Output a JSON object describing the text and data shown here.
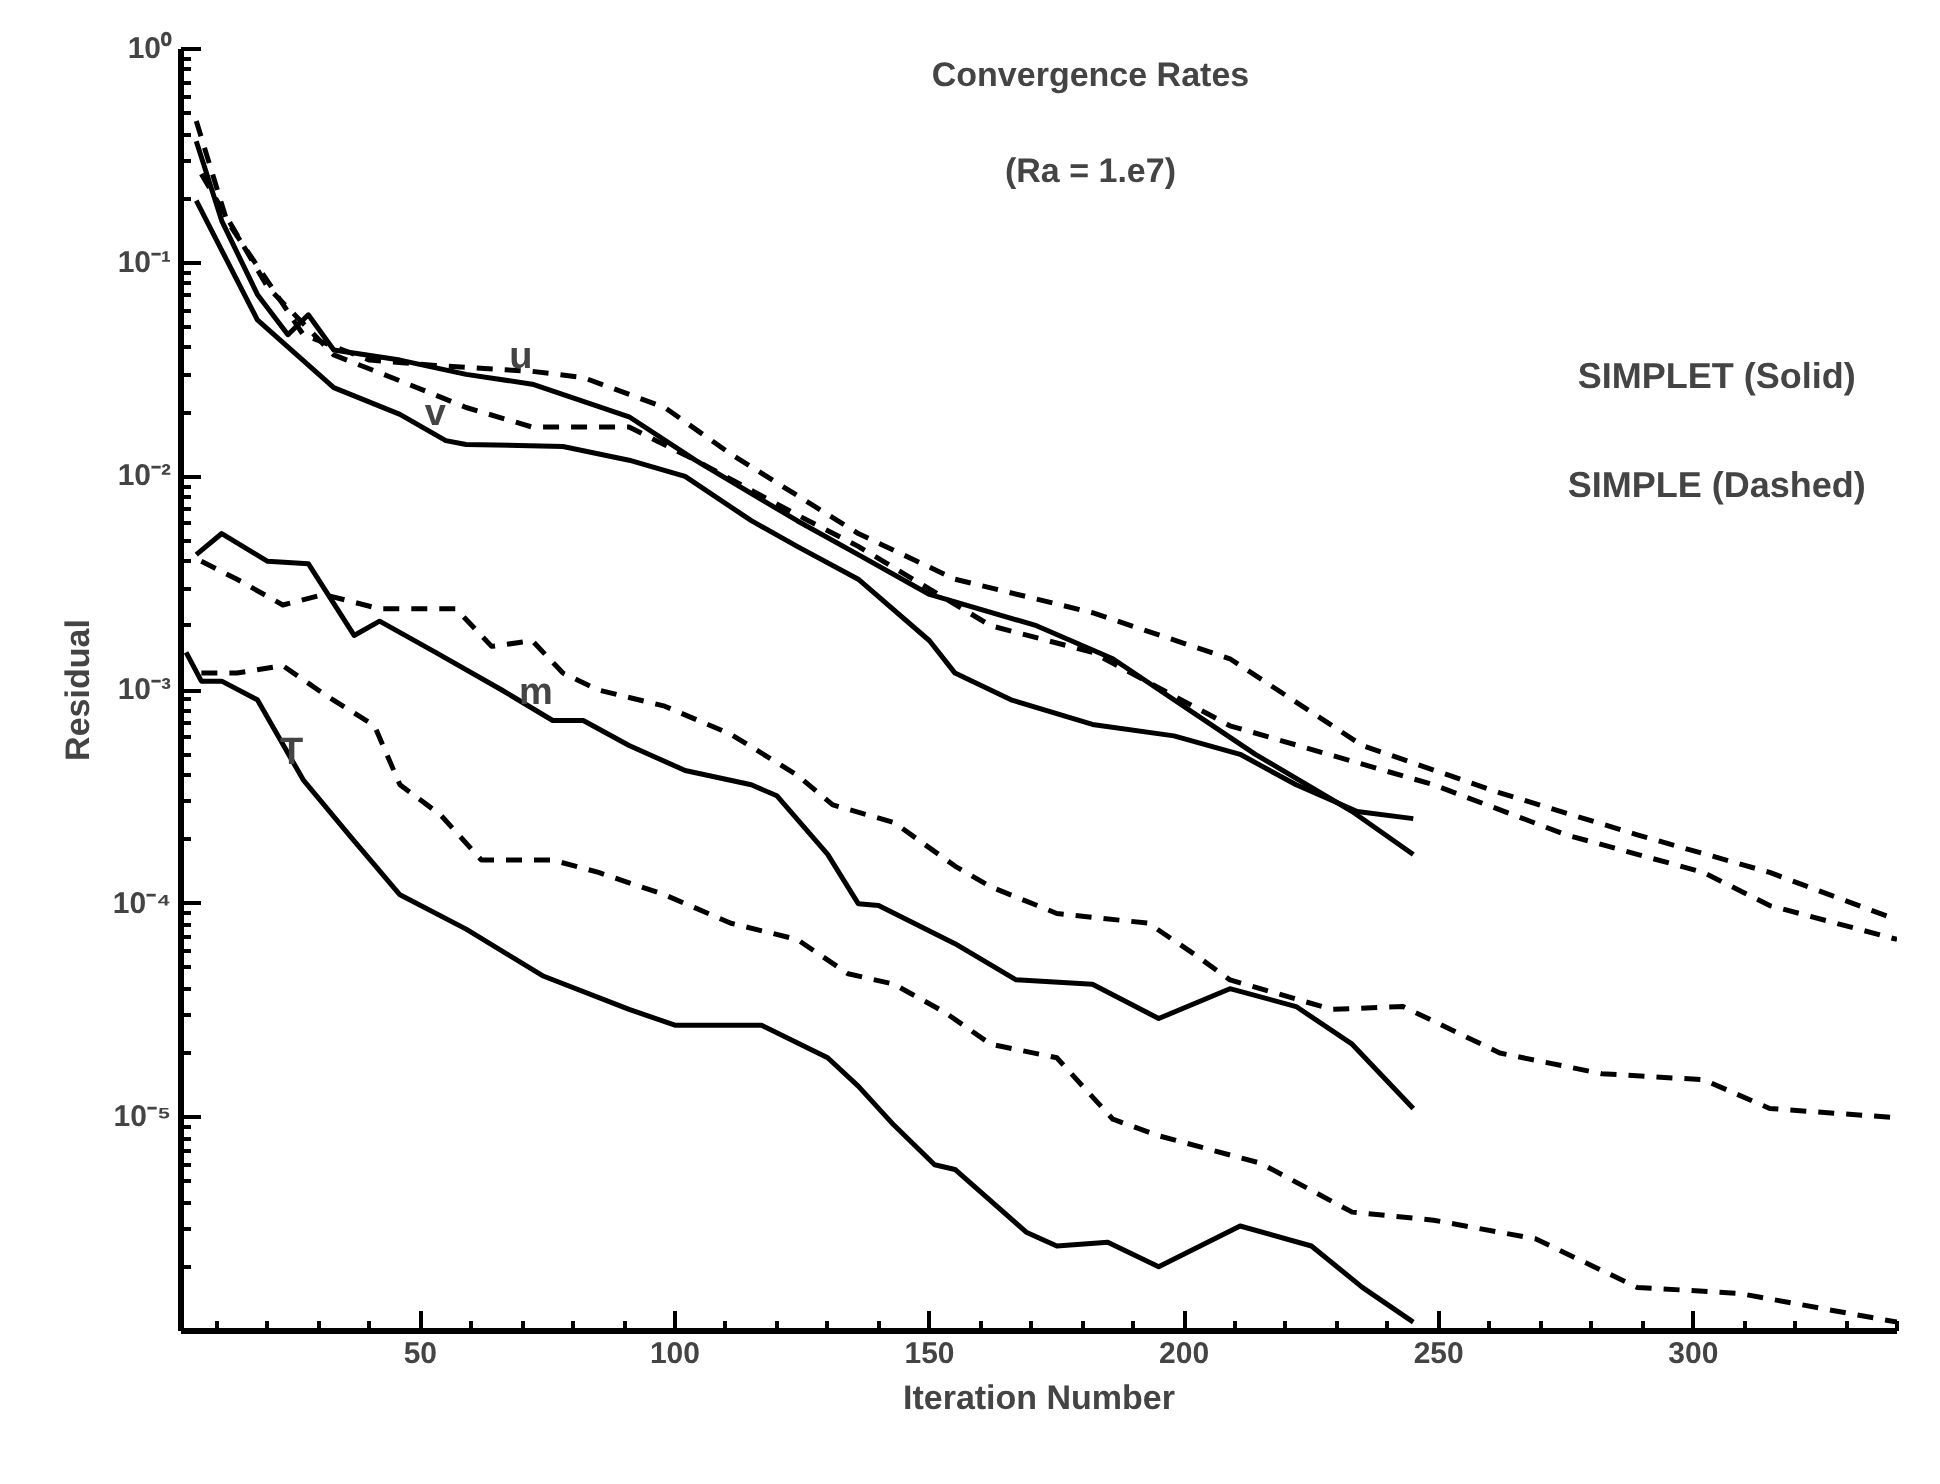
{
  "chart_data": {
    "type": "line",
    "title": "Convergence Rates",
    "subtitle": "(Ra = 1.e7)",
    "xlabel": "Iteration Number",
    "ylabel": "Residual",
    "log": true,
    "xlim": [
      3,
      340
    ],
    "ylim": [
      1e-06,
      1
    ],
    "xticks": [
      50,
      100,
      150,
      200,
      250,
      300
    ],
    "yticks": [
      {
        "value": 1,
        "label": "10⁰"
      },
      {
        "value": 0.1,
        "label": "10⁻¹"
      },
      {
        "value": 0.01,
        "label": "10⁻²"
      },
      {
        "value": 0.001,
        "label": "10⁻³"
      },
      {
        "value": 0.0001,
        "label": "10⁻⁴"
      },
      {
        "value": 1e-05,
        "label": "10⁻⁵"
      }
    ],
    "series": [
      {
        "color": "#000000",
        "line_style": "solid",
        "x": [
          6,
          11,
          18,
          24,
          28,
          33,
          46,
          59,
          72,
          91,
          104,
          124,
          136,
          150,
          171,
          186,
          214,
          233,
          245
        ],
        "values": [
          0.37,
          0.157,
          0.071,
          0.046,
          0.057,
          0.039,
          0.035,
          0.03,
          0.027,
          0.019,
          0.0119,
          0.0062,
          0.0043,
          0.0028,
          0.002,
          0.0014,
          0.0005,
          0.00027,
          0.00017
        ]
      },
      {
        "color": "#000000",
        "line_style": "solid",
        "x": [
          6,
          18,
          33,
          46,
          55,
          59,
          78,
          91,
          102,
          115,
          124,
          136,
          150,
          155,
          166,
          182,
          198,
          211,
          222,
          234,
          245
        ],
        "values": [
          0.195,
          0.054,
          0.026,
          0.0195,
          0.0147,
          0.0141,
          0.0138,
          0.0119,
          0.01,
          0.0062,
          0.0047,
          0.0033,
          0.0017,
          0.0012,
          0.0009,
          0.00069,
          0.00061,
          0.0005,
          0.00036,
          0.00027,
          0.00025
        ]
      },
      {
        "color": "#000000",
        "line_style": "dashed",
        "x": [
          6,
          12,
          20,
          27,
          40,
          53,
          72,
          82,
          98,
          111,
          136,
          155,
          182,
          209,
          235,
          262,
          289,
          315,
          340
        ],
        "values": [
          0.46,
          0.157,
          0.082,
          0.046,
          0.035,
          0.033,
          0.031,
          0.029,
          0.021,
          0.0127,
          0.0054,
          0.0033,
          0.0023,
          0.0014,
          0.00055,
          0.00033,
          0.00021,
          0.00014,
          8.4e-05
        ]
      },
      {
        "color": "#000000",
        "line_style": "dashed",
        "x": [
          7,
          20,
          33,
          46,
          59,
          72,
          91,
          104,
          124,
          136,
          162,
          182,
          209,
          249,
          275,
          302,
          315,
          340
        ],
        "values": [
          0.26,
          0.077,
          0.037,
          0.028,
          0.021,
          0.017,
          0.017,
          0.0119,
          0.0066,
          0.0047,
          0.002,
          0.0015,
          0.00068,
          0.00036,
          0.00021,
          0.00014,
          9.8e-05,
          6.8e-05
        ]
      },
      {
        "color": "#000000",
        "line_style": "solid",
        "x": [
          6,
          11,
          20,
          28,
          37,
          42,
          53,
          66,
          76,
          82,
          91,
          102,
          115,
          120,
          130,
          136,
          140,
          155,
          167,
          182,
          195,
          209,
          222,
          233,
          245
        ],
        "values": [
          0.0043,
          0.0054,
          0.004,
          0.0039,
          0.0018,
          0.0021,
          0.0015,
          0.001,
          0.00072,
          0.00072,
          0.00055,
          0.00042,
          0.00036,
          0.00032,
          0.00017,
          0.0001,
          9.8e-05,
          6.5e-05,
          4.4e-05,
          4.2e-05,
          2.9e-05,
          4e-05,
          3.3e-05,
          2.2e-05,
          1.1e-05
        ]
      },
      {
        "color": "#000000",
        "line_style": "dashed",
        "x": [
          7,
          14,
          23,
          31,
          42,
          57,
          64,
          72,
          78,
          85,
          98,
          111,
          124,
          131,
          143,
          155,
          162,
          175,
          193,
          202,
          209,
          229,
          243,
          262,
          282,
          302,
          315,
          339
        ],
        "values": [
          0.004,
          0.0033,
          0.0025,
          0.0028,
          0.0024,
          0.0024,
          0.0016,
          0.0017,
          0.0012,
          0.001,
          0.00084,
          0.00062,
          0.0004,
          0.00029,
          0.00024,
          0.00015,
          0.00012,
          9e-05,
          8.1e-05,
          5.8e-05,
          4.4e-05,
          3.2e-05,
          3.3e-05,
          2e-05,
          1.6e-05,
          1.5e-05,
          1.1e-05,
          1e-05
        ]
      },
      {
        "color": "#000000",
        "line_style": "solid",
        "x": [
          4,
          7,
          11,
          18,
          27,
          36,
          46,
          59,
          74,
          91,
          100,
          117,
          130,
          136,
          143,
          151,
          155,
          169,
          175,
          185,
          195,
          211,
          225,
          235,
          245
        ],
        "values": [
          0.0015,
          0.0011,
          0.0011,
          0.0009,
          0.00038,
          0.00021,
          0.00011,
          7.6e-05,
          4.6e-05,
          3.2e-05,
          2.7e-05,
          2.7e-05,
          1.9e-05,
          1.4e-05,
          9.2e-06,
          6e-06,
          5.7e-06,
          2.9e-06,
          2.5e-06,
          2.6e-06,
          2e-06,
          3.1e-06,
          2.5e-06,
          1.6e-06,
          1.1e-06
        ]
      },
      {
        "color": "#000000",
        "line_style": "dashed",
        "x": [
          7,
          14,
          23,
          31,
          41,
          46,
          54,
          62,
          69,
          76,
          85,
          98,
          111,
          124,
          134,
          143,
          153,
          162,
          175,
          186,
          195,
          215,
          233,
          249,
          269,
          289,
          309,
          340
        ],
        "values": [
          0.0012,
          0.0012,
          0.0013,
          0.00096,
          0.00068,
          0.00036,
          0.00026,
          0.00016,
          0.00016,
          0.00016,
          0.00014,
          0.00011,
          8.1e-05,
          6.8e-05,
          4.7e-05,
          4.2e-05,
          3.1e-05,
          2.2e-05,
          1.9e-05,
          9.8e-06,
          8.2e-06,
          6.1e-06,
          3.6e-06,
          3.3e-06,
          2.7e-06,
          1.6e-06,
          1.5e-06,
          1.1e-06
        ]
      }
    ],
    "annotations": [
      {
        "text": "u",
        "x": 72,
        "y": 0.027
      },
      {
        "text": "v",
        "x": 55,
        "y": 0.0147
      },
      {
        "text": "m",
        "x": 76,
        "y": 0.00072
      },
      {
        "text": "T",
        "x": 27,
        "y": 0.00038
      },
      "SIMPLET (Solid)",
      "SIMPLE (Dashed)"
    ]
  }
}
